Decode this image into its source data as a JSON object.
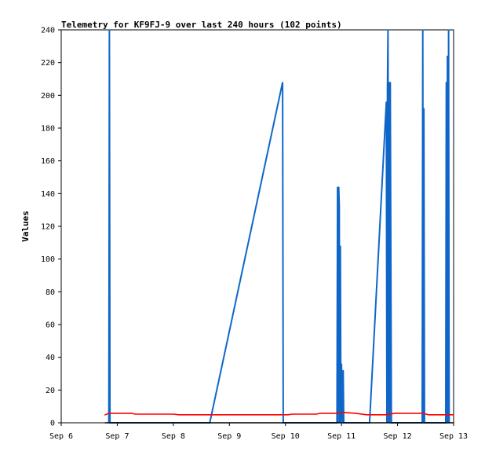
{
  "chart_data": {
    "type": "line",
    "title": "Telemetry for KF9FJ-9 over last 240 hours (102 points)",
    "xlabel": "",
    "ylabel": "Values",
    "x_ticks": [
      "Sep 6",
      "Sep 7",
      "Sep 8",
      "Sep 9",
      "Sep 10",
      "Sep 11",
      "Sep 12",
      "Sep 13"
    ],
    "y_ticks": [
      0,
      20,
      40,
      60,
      80,
      100,
      120,
      140,
      160,
      180,
      200,
      220,
      240
    ],
    "xlim": [
      0,
      7
    ],
    "ylim": [
      0,
      240
    ],
    "grid": false,
    "series": [
      {
        "color": "#1066c8",
        "points": [
          [
            0.85,
            0
          ],
          [
            0.86,
            240
          ],
          [
            0.87,
            0
          ],
          [
            2.65,
            0
          ],
          [
            3.95,
            208
          ],
          [
            3.96,
            0
          ],
          [
            4.92,
            0
          ],
          [
            4.93,
            144
          ],
          [
            4.94,
            0
          ],
          [
            4.95,
            144
          ],
          [
            4.96,
            132
          ],
          [
            4.97,
            0
          ],
          [
            4.98,
            108
          ],
          [
            4.99,
            0
          ],
          [
            5.0,
            36
          ],
          [
            5.02,
            0
          ],
          [
            5.03,
            32
          ],
          [
            5.04,
            0
          ],
          [
            5.5,
            0
          ],
          [
            5.8,
            196
          ],
          [
            5.81,
            0
          ],
          [
            5.82,
            204
          ],
          [
            5.83,
            240
          ],
          [
            5.84,
            0
          ],
          [
            5.85,
            208
          ],
          [
            5.86,
            0
          ],
          [
            5.87,
            208
          ],
          [
            5.88,
            104
          ],
          [
            5.89,
            0
          ],
          [
            6.44,
            0
          ],
          [
            6.45,
            240
          ],
          [
            6.46,
            0
          ],
          [
            6.47,
            192
          ],
          [
            6.48,
            0
          ],
          [
            6.86,
            0
          ],
          [
            6.87,
            208
          ],
          [
            6.88,
            0
          ],
          [
            6.89,
            224
          ],
          [
            6.9,
            0
          ],
          [
            6.91,
            240
          ],
          [
            6.92,
            0
          ]
        ]
      },
      {
        "color": "#ff0000",
        "points": [
          [
            0.78,
            4.8
          ],
          [
            0.85,
            5.8
          ],
          [
            1.25,
            5.8
          ],
          [
            1.32,
            5.3
          ],
          [
            2.0,
            5.3
          ],
          [
            2.1,
            4.9
          ],
          [
            3.0,
            4.9
          ],
          [
            4.05,
            4.9
          ],
          [
            4.12,
            5.3
          ],
          [
            4.55,
            5.3
          ],
          [
            4.62,
            5.8
          ],
          [
            4.92,
            5.8
          ],
          [
            5.05,
            6.3
          ],
          [
            5.25,
            5.8
          ],
          [
            5.45,
            4.9
          ],
          [
            5.8,
            4.9
          ],
          [
            5.95,
            5.8
          ],
          [
            6.45,
            5.8
          ],
          [
            6.55,
            4.9
          ],
          [
            7.0,
            4.9
          ]
        ]
      },
      {
        "color": "#000000",
        "points": [
          [
            0.78,
            0
          ],
          [
            7.0,
            0
          ]
        ]
      }
    ]
  }
}
